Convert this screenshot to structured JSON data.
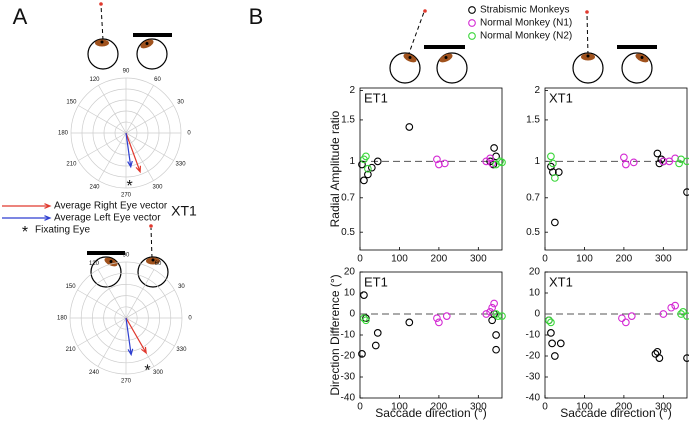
{
  "panel_labels": [
    "A",
    "B"
  ],
  "chart_data": [
    {
      "type": "polar",
      "annotation": "XT1",
      "rlim": [
        0,
        1
      ],
      "rticks": [
        0.2,
        0.4,
        0.6,
        0.8,
        1
      ],
      "thetaticks": [
        0,
        30,
        60,
        90,
        120,
        150,
        180,
        210,
        240,
        270,
        300,
        330
      ],
      "series": [
        {
          "name": "Average Right Eye vector",
          "color": "#e0392e",
          "theta": [
            290
          ],
          "r": [
            0.75
          ]
        },
        {
          "name": "Average Left Eye vector",
          "color": "#2f3fd0",
          "theta": [
            278
          ],
          "r": [
            0.62
          ]
        },
        {
          "name": "Fixating Eye",
          "marker": "*",
          "color": "#000000",
          "theta": [
            274
          ],
          "r": [
            0.93
          ]
        }
      ]
    },
    {
      "type": "polar",
      "rlim": [
        0,
        1
      ],
      "rticks": [
        0.2,
        0.4,
        0.6,
        0.8,
        1
      ],
      "thetaticks": [
        0,
        30,
        60,
        90,
        120,
        150,
        180,
        210,
        240,
        270,
        300,
        330
      ],
      "series": [
        {
          "color": "#e0392e",
          "theta": [
            300
          ],
          "r": [
            0.72
          ]
        },
        {
          "color": "#2f3fd0",
          "theta": [
            278
          ],
          "r": [
            0.66
          ]
        },
        {
          "marker": "*",
          "color": "#000000",
          "theta": [
            293
          ],
          "r": [
            0.98
          ]
        }
      ]
    },
    {
      "type": "scatter",
      "title": "ET1",
      "ylabel": "Radial Amplitude ratio",
      "yscale": "log",
      "xlim": [
        0,
        360
      ],
      "xticks": [
        0,
        100,
        200,
        300
      ],
      "ylim": [
        0.42,
        2.05
      ],
      "yticks": [
        0.5,
        0.7,
        1,
        1.5,
        2
      ],
      "hline": 1,
      "series": [
        {
          "name": "Strabismic Monkeys",
          "color": "#000000",
          "x": [
            5,
            10,
            20,
            30,
            45,
            125,
            330,
            340,
            345,
            338
          ],
          "values": [
            0.97,
            0.83,
            0.88,
            0.94,
            1.0,
            1.4,
            1.0,
            1.14,
            1.05,
            0.97
          ]
        },
        {
          "name": "Normal Monkey (N1)",
          "color": "#d42ad4",
          "x": [
            195,
            200,
            215,
            320,
            330,
            335
          ],
          "values": [
            1.02,
            0.97,
            0.98,
            1.0,
            1.03,
            0.98
          ]
        },
        {
          "name": "Normal Monkey (N2)",
          "color": "#3ad63a",
          "x": [
            10,
            15,
            20,
            345,
            355,
            360
          ],
          "values": [
            1.02,
            1.05,
            0.93,
            0.97,
            1.0,
            0.99
          ]
        }
      ]
    },
    {
      "type": "scatter",
      "title": "XT1",
      "yscale": "log",
      "xlim": [
        0,
        360
      ],
      "xticks": [
        0,
        100,
        200,
        300
      ],
      "ylim": [
        0.42,
        2.05
      ],
      "yticks": [
        0.5,
        0.7,
        1,
        1.5,
        2
      ],
      "hline": 1,
      "series": [
        {
          "color": "#000000",
          "x": [
            15,
            20,
            25,
            35,
            285,
            295,
            290,
            300,
            360
          ],
          "values": [
            0.95,
            0.9,
            0.55,
            0.9,
            1.08,
            1.02,
            0.98,
            1.0,
            0.74
          ]
        },
        {
          "color": "#d42ad4",
          "x": [
            200,
            205,
            225,
            300,
            315,
            330
          ],
          "values": [
            1.04,
            0.97,
            0.99,
            1.0,
            1.0,
            1.03
          ]
        },
        {
          "color": "#3ad63a",
          "x": [
            15,
            20,
            25,
            340,
            345,
            360
          ],
          "values": [
            1.05,
            0.98,
            0.85,
            0.98,
            1.02,
            1.0
          ]
        }
      ]
    },
    {
      "type": "scatter",
      "title": "ET1",
      "ylabel": "Direction Difference (°)",
      "xlabel": "Saccade direction (°)",
      "xlim": [
        0,
        360
      ],
      "xticks": [
        0,
        100,
        200,
        300
      ],
      "ylim": [
        -40,
        20
      ],
      "yticks": [
        -40,
        -30,
        -20,
        -10,
        0,
        10,
        20
      ],
      "hline": 0,
      "series": [
        {
          "color": "#000000",
          "x": [
            5,
            10,
            15,
            40,
            45,
            125,
            335,
            340,
            345,
            345
          ],
          "values": [
            -19,
            9,
            -2,
            -15,
            -9,
            -4,
            -3,
            0,
            -10,
            -17
          ]
        },
        {
          "color": "#d42ad4",
          "x": [
            195,
            200,
            220,
            320,
            330,
            335,
            340
          ],
          "values": [
            -2,
            -4,
            -1,
            0,
            1,
            3,
            5
          ]
        },
        {
          "color": "#3ad63a",
          "x": [
            10,
            15,
            345,
            350,
            360
          ],
          "values": [
            -2,
            -3,
            0,
            -1,
            -1
          ]
        }
      ]
    },
    {
      "type": "scatter",
      "title": "XT1",
      "xlabel": "Saccade direction (°)",
      "xlim": [
        0,
        360
      ],
      "xticks": [
        0,
        100,
        200,
        300
      ],
      "ylim": [
        -40,
        20
      ],
      "yticks": [
        -40,
        -30,
        -20,
        -10,
        0,
        10,
        20
      ],
      "hline": 0,
      "series": [
        {
          "color": "#000000",
          "x": [
            10,
            15,
            18,
            25,
            40,
            280,
            285,
            290,
            360
          ],
          "values": [
            -3,
            -9,
            -14,
            -20,
            -14,
            -19,
            -18,
            -21,
            -21
          ]
        },
        {
          "color": "#d42ad4",
          "x": [
            195,
            205,
            220,
            300,
            320,
            330
          ],
          "values": [
            -2,
            -4,
            -1,
            0,
            3,
            4
          ]
        },
        {
          "color": "#3ad63a",
          "x": [
            10,
            15,
            345,
            350,
            360
          ],
          "values": [
            -3,
            -4,
            0,
            1,
            -1
          ]
        }
      ]
    }
  ]
}
